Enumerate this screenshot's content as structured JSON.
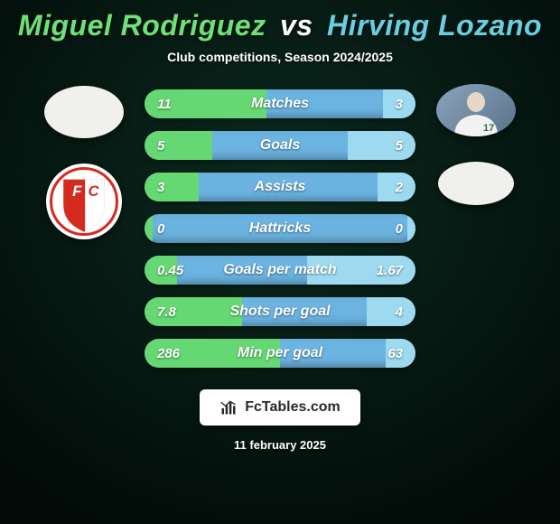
{
  "background": {
    "top_color": "#0b2a1e",
    "bottom_color": "#020a08",
    "vignette_color": "rgba(0,0,0,0.55)"
  },
  "title": {
    "player1_name": "Miguel Rodriguez",
    "vs": "vs",
    "player2_name": "Hirving Lozano",
    "player1_color": "#6fe079",
    "vs_color": "#ffffff",
    "player2_color": "#68cfe0",
    "fontsize": 32
  },
  "subtitle": {
    "text": "Club competitions, Season 2024/2025",
    "color": "#ffffff",
    "fontsize": 14
  },
  "left_side": {
    "photo_blank": true,
    "club_badge": "fc-utrecht"
  },
  "right_side": {
    "photo_blank": false,
    "jersey_number": "17",
    "club_badge_blank": true
  },
  "bars": {
    "base_color": "#6bb3e0",
    "left_fill_color": "#66d873",
    "right_fill_color": "#9dd9ef",
    "text_color": "#ffffff",
    "label_fontsize": 16,
    "value_fontsize": 15,
    "rows": [
      {
        "label": "Matches",
        "left": "11",
        "right": "3",
        "left_pct": 45,
        "right_pct": 12
      },
      {
        "label": "Goals",
        "left": "5",
        "right": "5",
        "left_pct": 25,
        "right_pct": 25
      },
      {
        "label": "Assists",
        "left": "3",
        "right": "2",
        "left_pct": 20,
        "right_pct": 14
      },
      {
        "label": "Hattricks",
        "left": "0",
        "right": "0",
        "left_pct": 3,
        "right_pct": 3
      },
      {
        "label": "Goals per match",
        "left": "0.45",
        "right": "1.67",
        "left_pct": 12,
        "right_pct": 40
      },
      {
        "label": "Shots per goal",
        "left": "7.8",
        "right": "4",
        "left_pct": 36,
        "right_pct": 18
      },
      {
        "label": "Min per goal",
        "left": "286",
        "right": "63",
        "left_pct": 50,
        "right_pct": 11
      }
    ]
  },
  "footer": {
    "site_label": "FcTables.com",
    "date_text": "11 february 2025",
    "date_color": "#ffffff",
    "date_fontsize": 13
  }
}
